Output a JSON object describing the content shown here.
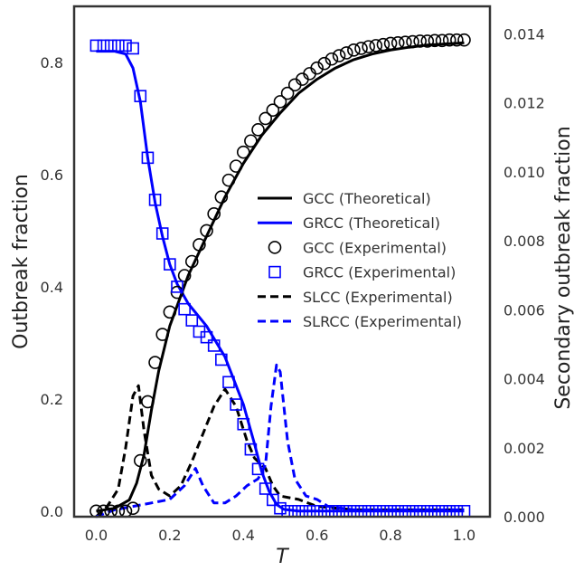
{
  "chart_data": {
    "type": "line",
    "xlabel": "T",
    "ylabel": "Outbreak fraction",
    "y2label": "Secondary outbreak fraction",
    "xlim": [
      -0.06,
      1.07
    ],
    "ylim": [
      -0.01,
      0.9
    ],
    "y2lim": [
      0.0,
      0.0148
    ],
    "x_ticks": [
      "0.0",
      "0.2",
      "0.4",
      "0.6",
      "0.8",
      "1.0"
    ],
    "y_ticks": [
      "0.0",
      "0.2",
      "0.4",
      "0.6",
      "0.8"
    ],
    "y2_ticks": [
      "0.000",
      "0.002",
      "0.004",
      "0.006",
      "0.008",
      "0.010",
      "0.012",
      "0.014"
    ],
    "grid": false,
    "legend_position": "center-right",
    "colors": {
      "gcc": "#000000",
      "grcc": "#0000ff"
    },
    "legend": [
      {
        "label": "GCC (Theoretical)",
        "style": "solid",
        "color": "#000000"
      },
      {
        "label": "GRCC (Theoretical)",
        "style": "solid",
        "color": "#0000ff"
      },
      {
        "label": "GCC (Experimental)",
        "style": "circle",
        "color": "#000000"
      },
      {
        "label": "GRCC (Experimental)",
        "style": "square",
        "color": "#0000ff"
      },
      {
        "label": "SLCC (Experimental)",
        "style": "dashed",
        "color": "#000000"
      },
      {
        "label": "SLRCC (Experimental)",
        "style": "dashed",
        "color": "#0000ff"
      }
    ],
    "series": [
      {
        "name": "GCC (Theoretical)",
        "axis": "left",
        "style": "solid",
        "color": "#000000",
        "points": [
          [
            0.0,
            0.0
          ],
          [
            0.05,
            0.005
          ],
          [
            0.09,
            0.02
          ],
          [
            0.11,
            0.05
          ],
          [
            0.13,
            0.1
          ],
          [
            0.15,
            0.18
          ],
          [
            0.17,
            0.25
          ],
          [
            0.2,
            0.33
          ],
          [
            0.25,
            0.42
          ],
          [
            0.3,
            0.49
          ],
          [
            0.35,
            0.56
          ],
          [
            0.4,
            0.62
          ],
          [
            0.45,
            0.67
          ],
          [
            0.5,
            0.71
          ],
          [
            0.55,
            0.745
          ],
          [
            0.6,
            0.77
          ],
          [
            0.65,
            0.79
          ],
          [
            0.7,
            0.805
          ],
          [
            0.75,
            0.815
          ],
          [
            0.8,
            0.822
          ],
          [
            0.85,
            0.827
          ],
          [
            0.9,
            0.831
          ],
          [
            0.95,
            0.833
          ],
          [
            1.0,
            0.835
          ]
        ]
      },
      {
        "name": "GRCC (Theoretical)",
        "axis": "left",
        "style": "solid",
        "color": "#0000ff",
        "points": [
          [
            0.0,
            0.82
          ],
          [
            0.05,
            0.82
          ],
          [
            0.08,
            0.815
          ],
          [
            0.1,
            0.79
          ],
          [
            0.12,
            0.73
          ],
          [
            0.14,
            0.63
          ],
          [
            0.16,
            0.55
          ],
          [
            0.18,
            0.49
          ],
          [
            0.2,
            0.44
          ],
          [
            0.22,
            0.405
          ],
          [
            0.25,
            0.37
          ],
          [
            0.3,
            0.33
          ],
          [
            0.35,
            0.275
          ],
          [
            0.4,
            0.19
          ],
          [
            0.43,
            0.12
          ],
          [
            0.45,
            0.07
          ],
          [
            0.47,
            0.035
          ],
          [
            0.49,
            0.012
          ],
          [
            0.51,
            0.003
          ],
          [
            0.55,
            0.0
          ],
          [
            1.0,
            0.0
          ]
        ]
      },
      {
        "name": "GCC (Experimental)",
        "axis": "left",
        "style": "circle",
        "color": "#000000",
        "points": [
          [
            0.0,
            0.0
          ],
          [
            0.02,
            0.0
          ],
          [
            0.04,
            0.0
          ],
          [
            0.06,
            0.0
          ],
          [
            0.08,
            0.0
          ],
          [
            0.1,
            0.005
          ],
          [
            0.12,
            0.09
          ],
          [
            0.14,
            0.195
          ],
          [
            0.16,
            0.265
          ],
          [
            0.18,
            0.315
          ],
          [
            0.2,
            0.355
          ],
          [
            0.22,
            0.39
          ],
          [
            0.24,
            0.42
          ],
          [
            0.26,
            0.445
          ],
          [
            0.28,
            0.475
          ],
          [
            0.3,
            0.5
          ],
          [
            0.32,
            0.53
          ],
          [
            0.34,
            0.56
          ],
          [
            0.36,
            0.59
          ],
          [
            0.38,
            0.615
          ],
          [
            0.4,
            0.64
          ],
          [
            0.42,
            0.66
          ],
          [
            0.44,
            0.68
          ],
          [
            0.46,
            0.7
          ],
          [
            0.48,
            0.715
          ],
          [
            0.5,
            0.73
          ],
          [
            0.52,
            0.745
          ],
          [
            0.54,
            0.76
          ],
          [
            0.56,
            0.77
          ],
          [
            0.58,
            0.78
          ],
          [
            0.6,
            0.79
          ],
          [
            0.62,
            0.798
          ],
          [
            0.64,
            0.806
          ],
          [
            0.66,
            0.812
          ],
          [
            0.68,
            0.817
          ],
          [
            0.7,
            0.822
          ],
          [
            0.72,
            0.825
          ],
          [
            0.74,
            0.828
          ],
          [
            0.76,
            0.83
          ],
          [
            0.78,
            0.832
          ],
          [
            0.8,
            0.834
          ],
          [
            0.82,
            0.835
          ],
          [
            0.84,
            0.836
          ],
          [
            0.86,
            0.837
          ],
          [
            0.88,
            0.838
          ],
          [
            0.9,
            0.838
          ],
          [
            0.92,
            0.839
          ],
          [
            0.94,
            0.839
          ],
          [
            0.96,
            0.84
          ],
          [
            0.98,
            0.84
          ],
          [
            1.0,
            0.84
          ]
        ]
      },
      {
        "name": "GRCC (Experimental)",
        "axis": "left",
        "style": "square",
        "color": "#0000ff",
        "points": [
          [
            0.0,
            0.83
          ],
          [
            0.02,
            0.83
          ],
          [
            0.04,
            0.83
          ],
          [
            0.06,
            0.83
          ],
          [
            0.08,
            0.83
          ],
          [
            0.1,
            0.825
          ],
          [
            0.12,
            0.74
          ],
          [
            0.14,
            0.63
          ],
          [
            0.16,
            0.555
          ],
          [
            0.18,
            0.495
          ],
          [
            0.2,
            0.44
          ],
          [
            0.22,
            0.4
          ],
          [
            0.24,
            0.36
          ],
          [
            0.26,
            0.34
          ],
          [
            0.28,
            0.32
          ],
          [
            0.3,
            0.31
          ],
          [
            0.32,
            0.295
          ],
          [
            0.34,
            0.27
          ],
          [
            0.36,
            0.23
          ],
          [
            0.38,
            0.19
          ],
          [
            0.4,
            0.155
          ],
          [
            0.42,
            0.11
          ],
          [
            0.44,
            0.075
          ],
          [
            0.46,
            0.04
          ],
          [
            0.48,
            0.02
          ],
          [
            0.5,
            0.005
          ],
          [
            0.52,
            0.0
          ],
          [
            0.54,
            0.0
          ],
          [
            0.56,
            0.0
          ],
          [
            0.58,
            0.0
          ],
          [
            0.6,
            0.0
          ],
          [
            0.62,
            0.0
          ],
          [
            0.64,
            0.0
          ],
          [
            0.66,
            0.0
          ],
          [
            0.68,
            0.0
          ],
          [
            0.7,
            0.0
          ],
          [
            0.72,
            0.0
          ],
          [
            0.74,
            0.0
          ],
          [
            0.76,
            0.0
          ],
          [
            0.78,
            0.0
          ],
          [
            0.8,
            0.0
          ],
          [
            0.82,
            0.0
          ],
          [
            0.84,
            0.0
          ],
          [
            0.86,
            0.0
          ],
          [
            0.88,
            0.0
          ],
          [
            0.9,
            0.0
          ],
          [
            0.92,
            0.0
          ],
          [
            0.94,
            0.0
          ],
          [
            0.96,
            0.0
          ],
          [
            0.98,
            0.0
          ],
          [
            1.0,
            0.0
          ]
        ]
      },
      {
        "name": "SLCC (Experimental)",
        "axis": "right",
        "style": "dashed",
        "color": "#000000",
        "points": [
          [
            0.0,
            0.0
          ],
          [
            0.03,
            0.0003
          ],
          [
            0.06,
            0.0008
          ],
          [
            0.08,
            0.002
          ],
          [
            0.1,
            0.0035
          ],
          [
            0.115,
            0.0038
          ],
          [
            0.13,
            0.0025
          ],
          [
            0.15,
            0.0012
          ],
          [
            0.17,
            0.0008
          ],
          [
            0.2,
            0.0006
          ],
          [
            0.23,
            0.0009
          ],
          [
            0.26,
            0.0016
          ],
          [
            0.29,
            0.0024
          ],
          [
            0.32,
            0.0032
          ],
          [
            0.35,
            0.0037
          ],
          [
            0.38,
            0.0032
          ],
          [
            0.41,
            0.0022
          ],
          [
            0.43,
            0.0017
          ],
          [
            0.46,
            0.0014
          ],
          [
            0.48,
            0.0009
          ],
          [
            0.5,
            0.0006
          ],
          [
            0.55,
            0.0005
          ],
          [
            0.6,
            0.0003
          ],
          [
            0.7,
            0.0002
          ],
          [
            0.8,
            0.0002
          ],
          [
            0.9,
            0.0002
          ],
          [
            1.0,
            0.0002
          ]
        ]
      },
      {
        "name": "SLRCC (Experimental)",
        "axis": "right",
        "style": "dashed",
        "color": "#0000ff",
        "points": [
          [
            0.0,
            0.0
          ],
          [
            0.05,
            0.0002
          ],
          [
            0.1,
            0.0003
          ],
          [
            0.15,
            0.0004
          ],
          [
            0.2,
            0.0005
          ],
          [
            0.24,
            0.0009
          ],
          [
            0.27,
            0.0014
          ],
          [
            0.29,
            0.0009
          ],
          [
            0.32,
            0.0004
          ],
          [
            0.35,
            0.0004
          ],
          [
            0.38,
            0.0006
          ],
          [
            0.41,
            0.0009
          ],
          [
            0.44,
            0.0011
          ],
          [
            0.46,
            0.0015
          ],
          [
            0.475,
            0.0032
          ],
          [
            0.49,
            0.0044
          ],
          [
            0.5,
            0.0042
          ],
          [
            0.52,
            0.0022
          ],
          [
            0.54,
            0.0011
          ],
          [
            0.57,
            0.0006
          ],
          [
            0.6,
            0.0005
          ],
          [
            0.63,
            0.0003
          ],
          [
            0.7,
            0.0002
          ],
          [
            0.8,
            0.0002
          ],
          [
            0.9,
            0.0002
          ],
          [
            1.0,
            0.0002
          ]
        ]
      }
    ]
  }
}
